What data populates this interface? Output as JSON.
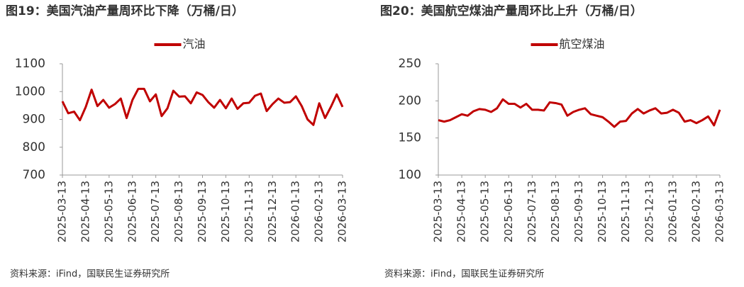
{
  "chart_data": [
    {
      "type": "line",
      "title": "图19：美国汽油产量周环比下降（万桶/日）",
      "source": "资料来源：iFind，国联民生证券研究所",
      "categories": [
        "2025-03-13",
        null,
        null,
        null,
        "2025-04-13",
        null,
        null,
        null,
        "2025-05-13",
        null,
        null,
        null,
        "2025-06-13",
        null,
        null,
        null,
        "2025-07-13",
        null,
        null,
        null,
        "2025-08-13",
        null,
        null,
        null,
        "2025-09-13",
        null,
        null,
        null,
        "2025-10-13",
        null,
        null,
        null,
        "2025-11-13",
        null,
        null,
        null,
        "2025-12-13",
        null,
        null,
        null,
        "2026-01-13",
        null,
        null,
        null,
        "2026-02-13",
        null,
        null,
        null,
        "2026-03-13"
      ],
      "series": [
        {
          "name": "汽油",
          "color": "#c00000",
          "values": [
            965,
            922,
            928,
            897,
            945,
            1007,
            948,
            970,
            942,
            955,
            975,
            905,
            970,
            1010,
            1010,
            965,
            990,
            912,
            940,
            1003,
            982,
            983,
            958,
            997,
            988,
            962,
            942,
            970,
            940,
            975,
            938,
            958,
            960,
            985,
            993,
            930,
            955,
            975,
            960,
            962,
            983,
            948,
            900,
            880,
            958,
            905,
            945,
            990,
            945
          ]
        }
      ],
      "ylim": [
        700,
        1100
      ],
      "yticks": [
        700,
        800,
        900,
        1000,
        1100
      ],
      "legend": "top"
    },
    {
      "type": "line",
      "title": "图20：美国航空煤油产量周环比上升（万桶/日）",
      "source": "资料来源：iFind，国联民生证券研究所",
      "categories": [
        "2025-03-13",
        null,
        null,
        null,
        "2025-04-13",
        null,
        null,
        null,
        "2025-05-13",
        null,
        null,
        null,
        "2025-06-13",
        null,
        null,
        null,
        "2025-07-13",
        null,
        null,
        null,
        "2025-08-13",
        null,
        null,
        null,
        "2025-09-13",
        null,
        null,
        null,
        "2025-10-13",
        null,
        null,
        null,
        "2025-11-13",
        null,
        null,
        null,
        "2025-12-13",
        null,
        null,
        null,
        "2026-01-13",
        null,
        null,
        null,
        "2026-02-13",
        null,
        null,
        null,
        "2026-03-13"
      ],
      "series": [
        {
          "name": "航空煤油",
          "color": "#c00000",
          "values": [
            174,
            172,
            174,
            178,
            182,
            180,
            186,
            189,
            188,
            185,
            190,
            202,
            196,
            196,
            191,
            196,
            188,
            188,
            187,
            198,
            197,
            195,
            180,
            185,
            188,
            190,
            182,
            180,
            178,
            172,
            165,
            172,
            173,
            183,
            189,
            183,
            187,
            190,
            183,
            184,
            188,
            184,
            172,
            174,
            170,
            174,
            179,
            167,
            188
          ]
        }
      ],
      "ylim": [
        100,
        250
      ],
      "yticks": [
        100,
        150,
        200,
        250
      ],
      "legend": "top"
    }
  ]
}
